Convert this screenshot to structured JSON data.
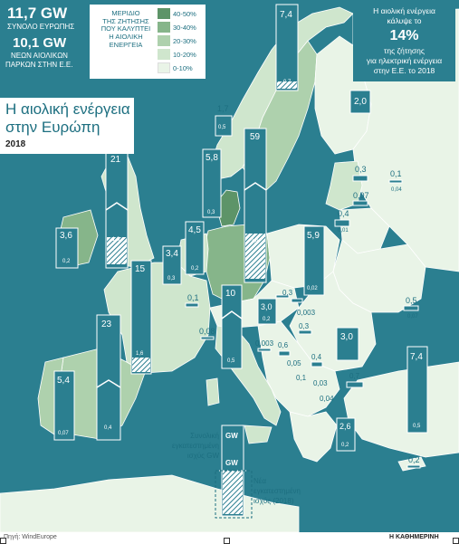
{
  "stats": {
    "total_gw": "11,7 GW",
    "total_label": "ΣΥΝΟΛΟ ΕΥΡΩΠΗΣ",
    "new_gw": "10,1 GW",
    "new_label_1": "ΝΕΩΝ ΑΙΟΛΙΚΩΝ",
    "new_label_2": "ΠΑΡΚΩΝ ΣΤΗΝ Ε.Ε."
  },
  "legend": {
    "title_lines": [
      "ΜΕΡΙΔΙΟ",
      "ΤΗΣ ΖΗΤΗΣΗΣ",
      "ΠΟΥ ΚΑΛΥΠΤΕΙ",
      "Η ΑΙΟΛΙΚΗ",
      "ΕΝΕΡΓΕΙΑ"
    ],
    "items": [
      {
        "label": "40-50%",
        "color": "#5d9468"
      },
      {
        "label": "30-40%",
        "color": "#86b58a"
      },
      {
        "label": "20-30%",
        "color": "#aed1ad"
      },
      {
        "label": "10-20%",
        "color": "#cfe6cd"
      },
      {
        "label": "0-10%",
        "color": "#e9f4e7"
      }
    ]
  },
  "topright": {
    "line1": "Η αιολική ενέργεια",
    "line2": "κάλυψε το",
    "percent": "14%",
    "line3": "της ζήτησης",
    "line4": "για ηλεκτρική ενέργεια",
    "line5": "στην Ε.Ε. το 2018"
  },
  "title": {
    "line1": "Η αιολική ενέργεια",
    "line2": "στην Ευρώπη",
    "year": "2018"
  },
  "key": {
    "installed_1": "Συνολική",
    "installed_2": "εγκατεστημένη",
    "installed_3": "ισχύς GW",
    "new_1": "Νέα",
    "new_2": "εγκατεστημένη",
    "new_3": "ισχύς (2018)",
    "gw1": "GW",
    "gw2": "GW"
  },
  "bars": [
    {
      "name": "norway",
      "total": "1,7",
      "new": "0,5"
    },
    {
      "name": "sweden",
      "total": "7,4",
      "new": "0,7"
    },
    {
      "name": "finland",
      "total": "2,0",
      "new": ""
    },
    {
      "name": "uk",
      "total": "21",
      "new": "1,9"
    },
    {
      "name": "ireland",
      "total": "3,6",
      "new": "0,2"
    },
    {
      "name": "denmark",
      "total": "5,8",
      "new": "0,3"
    },
    {
      "name": "germany",
      "total": "59",
      "new": "3,4"
    },
    {
      "name": "netherlands",
      "total": "4,5",
      "new": "0,2"
    },
    {
      "name": "belgium",
      "total": "3,4",
      "new": "0,3"
    },
    {
      "name": "france",
      "total": "15",
      "new": "1,6"
    },
    {
      "name": "spain",
      "total": "23",
      "new": "0,4"
    },
    {
      "name": "portugal",
      "total": "5,4",
      "new": "0,07"
    },
    {
      "name": "poland",
      "total": "5,9",
      "new": "0,02"
    },
    {
      "name": "italy",
      "total": "10",
      "new": "0,5"
    },
    {
      "name": "czechia",
      "total": "0,3",
      "new": ""
    },
    {
      "name": "austria",
      "total": "3,0",
      "new": "0,2"
    },
    {
      "name": "romania",
      "total": "3,0",
      "new": ""
    },
    {
      "name": "turkey",
      "total": "7,4",
      "new": "0,5"
    },
    {
      "name": "greece",
      "total": "2,6",
      "new": "0,2"
    },
    {
      "name": "estonia",
      "total": "0,3",
      "new": ""
    },
    {
      "name": "latvia",
      "total": "0,07",
      "new": ""
    },
    {
      "name": "russia",
      "total": "0,1",
      "new": "0,04"
    },
    {
      "name": "lithuania",
      "total": "0,4",
      "new": "0,01"
    },
    {
      "name": "luxembourg",
      "total": "0,1",
      "new": ""
    },
    {
      "name": "switzerland",
      "total": "0,08",
      "new": ""
    },
    {
      "name": "slovakia",
      "total": "0,003",
      "new": ""
    },
    {
      "name": "hungary",
      "total": "0,3",
      "new": ""
    },
    {
      "name": "slovenia",
      "total": "0,003",
      "new": ""
    },
    {
      "name": "croatia",
      "total": "0,6",
      "new": ""
    },
    {
      "name": "bosnia",
      "total": "0,05",
      "new": ""
    },
    {
      "name": "serbia",
      "total": "0,4",
      "new": ""
    },
    {
      "name": "montenegro",
      "total": "0,1",
      "new": ""
    },
    {
      "name": "bulgaria",
      "total": "0,7",
      "new": ""
    },
    {
      "name": "n-macedonia",
      "total": "0,03",
      "new": ""
    },
    {
      "name": "albania",
      "total": "0,04",
      "new": ""
    },
    {
      "name": "ukraine",
      "total": "0,5",
      "new": "0,07"
    },
    {
      "name": "cyprus",
      "total": "0,2",
      "new": ""
    }
  ],
  "footer": {
    "source": "Πηγή: WindEurope",
    "brand": "Η ΚΑΘΗΜΕΡΙΝΗ"
  },
  "colors": {
    "sea": "#2b7f90",
    "bar": "#2b7f90",
    "outline": "#ffffff"
  }
}
